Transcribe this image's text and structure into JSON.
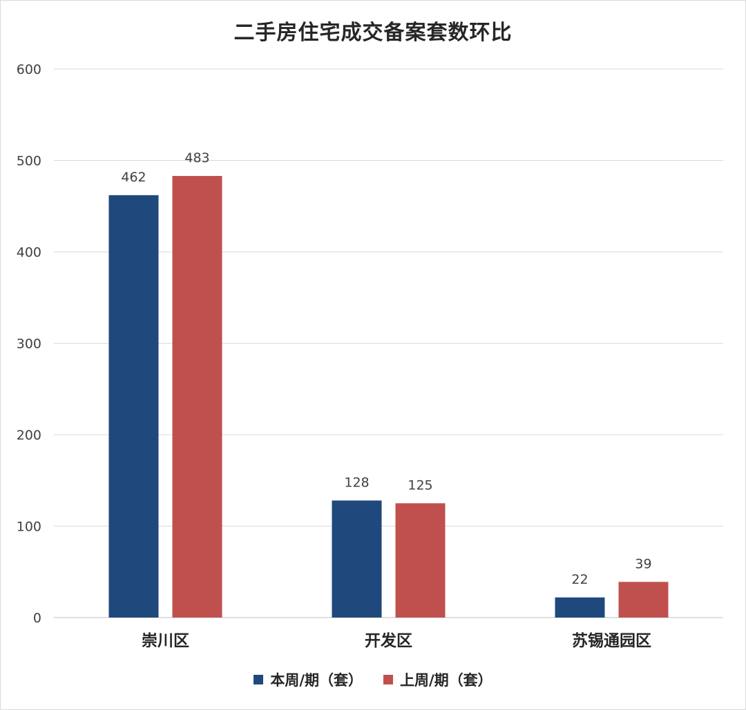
{
  "chart_data": {
    "type": "bar",
    "title": "二手房住宅成交备案套数环比",
    "categories": [
      "崇川区",
      "开发区",
      "苏锡通园区"
    ],
    "series": [
      {
        "name": "本周/期（套）",
        "color": "#1f497d",
        "values": [
          462,
          128,
          22
        ]
      },
      {
        "name": "上周/期（套）",
        "color": "#c0504d",
        "values": [
          483,
          125,
          39
        ]
      }
    ],
    "ylim": [
      0,
      600
    ],
    "yticks": [
      0,
      100,
      200,
      300,
      400,
      500,
      600
    ],
    "grid": true,
    "legend_position": "bottom"
  }
}
